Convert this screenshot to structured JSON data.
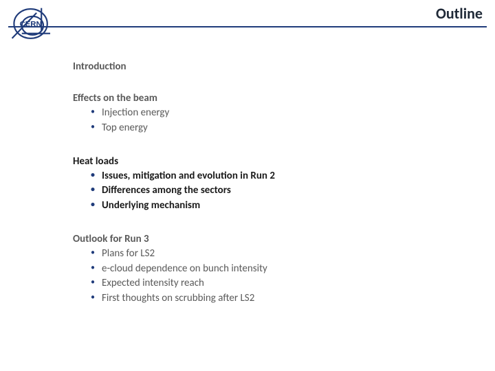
{
  "header": {
    "title": "Outline",
    "title_fontsize": 22,
    "title_color": "#1f2937",
    "underline_color": "#1f3b7a",
    "underline_width": 2
  },
  "logo": {
    "label": "CERN",
    "color": "#1f3b7a"
  },
  "content": {
    "fontsize": 15,
    "text_color": "#5a5a5a",
    "highlight_color": "#1a1a1a",
    "bullet_color": "#1f3b7a",
    "sections": [
      {
        "title": "Introduction",
        "highlight": false,
        "items": []
      },
      {
        "title": "Effects on the beam",
        "highlight": false,
        "items": [
          "Injection energy",
          "Top energy"
        ]
      },
      {
        "title": "Heat loads",
        "highlight": true,
        "items": [
          "Issues, mitigation and evolution in Run 2",
          "Differences among the sectors",
          "Underlying mechanism"
        ]
      },
      {
        "title": "Outlook for Run 3",
        "highlight": false,
        "items": [
          "Plans for LS2",
          "e-cloud dependence on bunch intensity",
          "Expected intensity reach",
          "First thoughts on scrubbing after LS2"
        ]
      }
    ]
  },
  "background_color": "#ffffff"
}
